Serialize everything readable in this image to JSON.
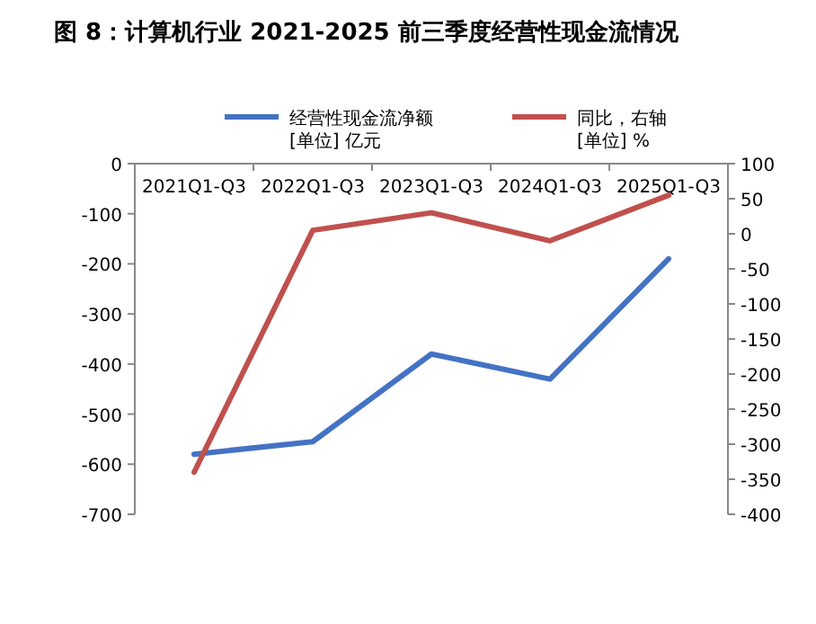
{
  "chart_data": {
    "type": "line",
    "title": "图 8：计算机行业 2021-2025 前三季度经营性现金流情况",
    "categories": [
      "2021Q1-Q3",
      "2022Q1-Q3",
      "2023Q1-Q3",
      "2024Q1-Q3",
      "2025Q1-Q3"
    ],
    "series": [
      {
        "name": "经营性现金流净额\n[单位] 亿元",
        "color": "#4472c4",
        "values": [
          -580,
          -555,
          -380,
          -430,
          -190
        ]
      },
      {
        "name": "同比，右轴\n[单位] %",
        "color": "#c0504d",
        "values": [
          -340,
          5,
          30,
          -10,
          55
        ],
        "axis": "y2"
      }
    ],
    "ylim": [
      -700,
      0
    ],
    "yticks": [
      -700,
      -600,
      -500,
      -400,
      -300,
      -200,
      -100,
      0
    ],
    "y2lim": [
      -400,
      100
    ],
    "y2ticks": [
      -400,
      -350,
      -300,
      -250,
      -200,
      -150,
      -100,
      -50,
      0,
      50,
      100
    ],
    "legend": "top",
    "grid": false,
    "marker": "none",
    "line_style": "solid"
  }
}
